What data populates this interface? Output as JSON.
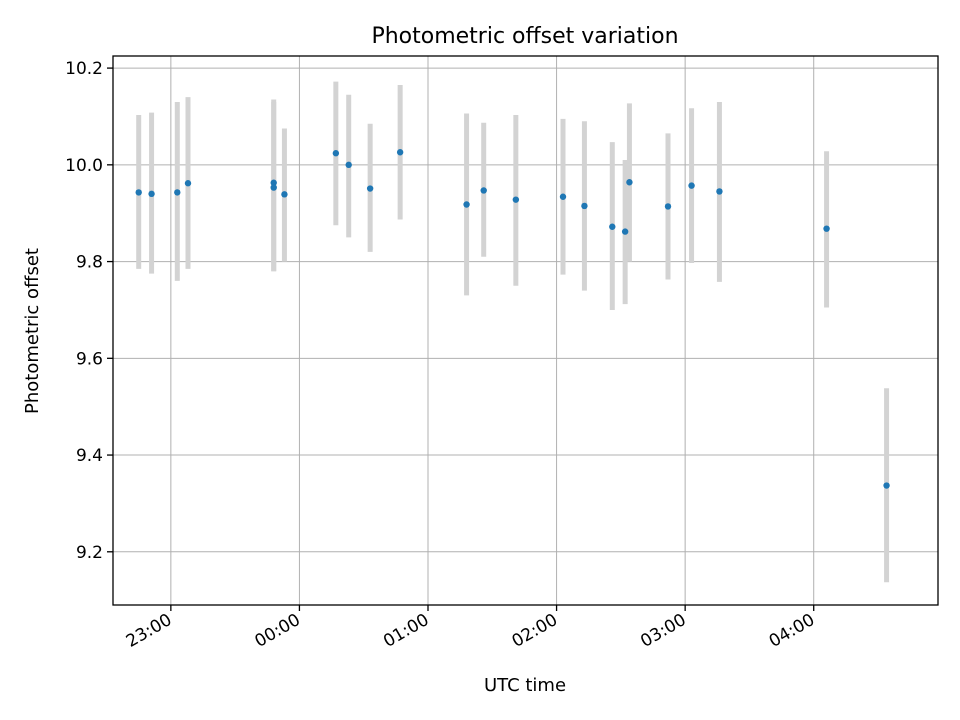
{
  "chart_data": {
    "type": "scatter",
    "title": "Photometric offset variation",
    "xlabel": "UTC time",
    "ylabel": "Photometric offset",
    "x_ticks": [
      "23:00",
      "00:00",
      "01:00",
      "02:00",
      "03:00",
      "04:00"
    ],
    "y_ticks": [
      "9.2",
      "9.4",
      "9.6",
      "9.8",
      "10.0",
      "10.2"
    ],
    "y_tick_values": [
      9.2,
      9.4,
      9.6,
      9.8,
      10.0,
      10.2
    ],
    "xlim": [
      "22:33",
      "04:58"
    ],
    "ylim": [
      9.09,
      10.225
    ],
    "grid": true,
    "point_color": "#1f77b4",
    "errorbar_color": "#d3d3d3",
    "points": [
      {
        "x": "22:45",
        "y": 9.943,
        "ylow": 9.785,
        "yhigh": 10.103
      },
      {
        "x": "22:51",
        "y": 9.94,
        "ylow": 9.775,
        "yhigh": 10.108
      },
      {
        "x": "23:03",
        "y": 9.943,
        "ylow": 9.76,
        "yhigh": 10.13
      },
      {
        "x": "23:08",
        "y": 9.962,
        "ylow": 9.785,
        "yhigh": 10.14
      },
      {
        "x": "23:48",
        "y": 9.963,
        "ylow": 9.78,
        "yhigh": 10.135
      },
      {
        "x": "23:48",
        "y": 9.953,
        "ylow": 9.78,
        "yhigh": 10.13
      },
      {
        "x": "23:53",
        "y": 9.939,
        "ylow": 9.8,
        "yhigh": 10.075
      },
      {
        "x": "00:17",
        "y": 10.024,
        "ylow": 9.875,
        "yhigh": 10.172
      },
      {
        "x": "00:23",
        "y": 10.0,
        "ylow": 9.85,
        "yhigh": 10.145
      },
      {
        "x": "00:33",
        "y": 9.951,
        "ylow": 9.82,
        "yhigh": 10.085
      },
      {
        "x": "00:47",
        "y": 10.026,
        "ylow": 9.887,
        "yhigh": 10.165
      },
      {
        "x": "01:18",
        "y": 9.918,
        "ylow": 9.73,
        "yhigh": 10.106
      },
      {
        "x": "01:26",
        "y": 9.947,
        "ylow": 9.81,
        "yhigh": 10.087
      },
      {
        "x": "01:41",
        "y": 9.928,
        "ylow": 9.75,
        "yhigh": 10.103
      },
      {
        "x": "02:03",
        "y": 9.934,
        "ylow": 9.773,
        "yhigh": 10.095
      },
      {
        "x": "02:13",
        "y": 9.915,
        "ylow": 9.74,
        "yhigh": 10.09
      },
      {
        "x": "02:26",
        "y": 9.872,
        "ylow": 9.7,
        "yhigh": 10.047
      },
      {
        "x": "02:32",
        "y": 9.862,
        "ylow": 9.712,
        "yhigh": 10.01
      },
      {
        "x": "02:34",
        "y": 9.964,
        "ylow": 9.8,
        "yhigh": 10.127
      },
      {
        "x": "02:52",
        "y": 9.914,
        "ylow": 9.763,
        "yhigh": 10.065
      },
      {
        "x": "03:03",
        "y": 9.957,
        "ylow": 9.797,
        "yhigh": 10.117
      },
      {
        "x": "03:16",
        "y": 9.945,
        "ylow": 9.758,
        "yhigh": 10.13
      },
      {
        "x": "04:06",
        "y": 9.868,
        "ylow": 9.705,
        "yhigh": 10.028
      },
      {
        "x": "04:34",
        "y": 9.337,
        "ylow": 9.137,
        "yhigh": 9.538
      }
    ]
  }
}
